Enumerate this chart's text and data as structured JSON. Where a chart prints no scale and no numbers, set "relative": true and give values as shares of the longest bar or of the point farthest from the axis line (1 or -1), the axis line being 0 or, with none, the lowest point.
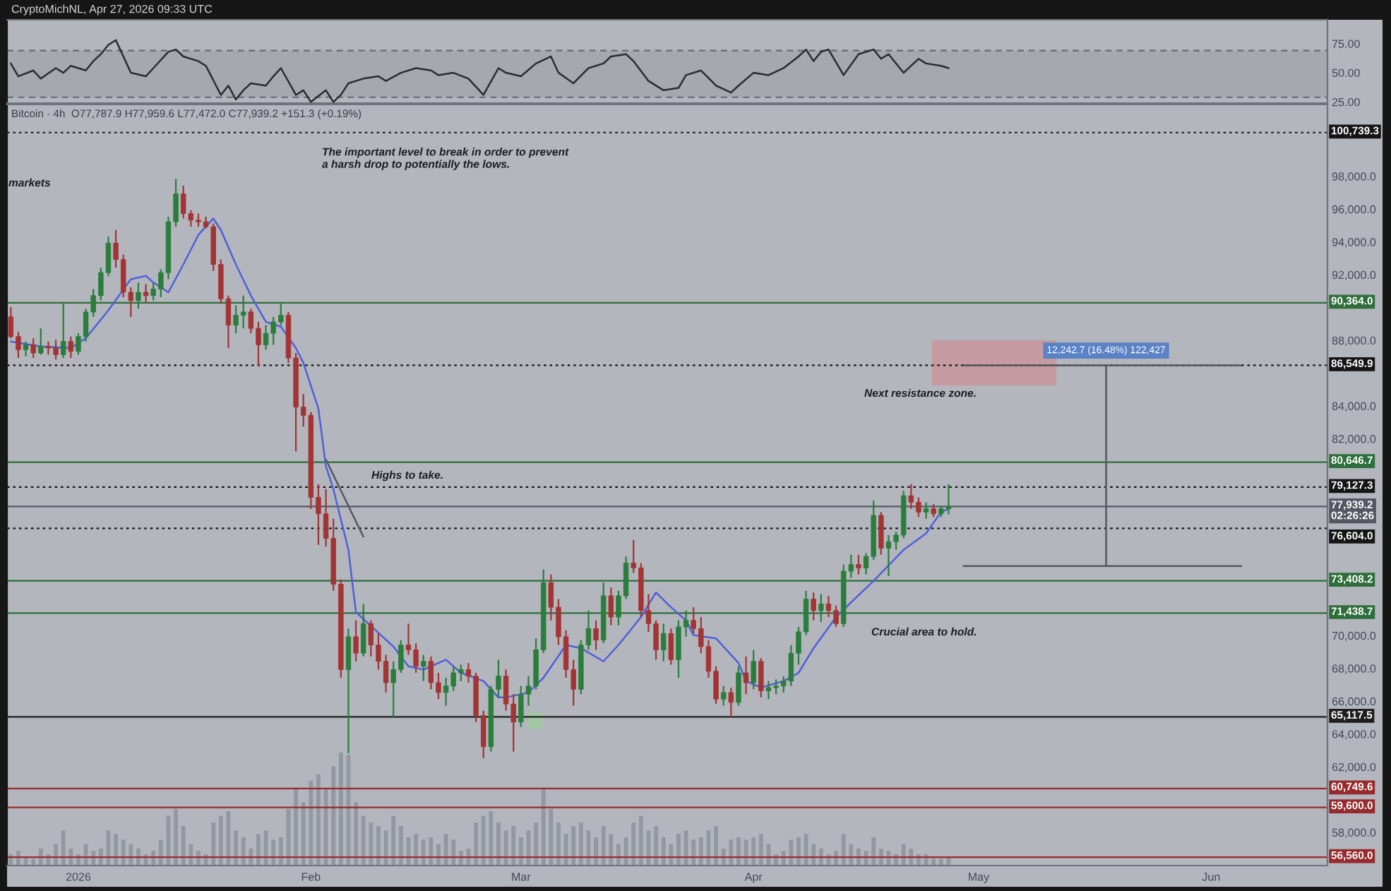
{
  "chart_data": [
    {
      "type": "line",
      "annotations": [
        "CryptoMichNL, Apr 27, 2026 09:33 UTC"
      ],
      "xlim": [
        "2025-12-22T12:00",
        "2026-06-16T12:00"
      ],
      "ylim": [
        25,
        96.5
      ],
      "yticks": [
        {
          "value": 25,
          "label": "25.00"
        },
        {
          "value": 50,
          "label": "50.00"
        },
        {
          "value": 75,
          "label": "75.00"
        }
      ],
      "tick_labels": "y",
      "bands": [
        {
          "axis": "y",
          "from": 30,
          "to": 70,
          "color": "#a5a8af"
        }
      ],
      "ref_lines": [
        {
          "axis": "y",
          "value": 70,
          "color": "#666a72",
          "line_style": "dashed"
        },
        {
          "axis": "y",
          "value": 30,
          "color": "#666a72",
          "line_style": "dashed"
        }
      ],
      "series": [
        {
          "color": "#2b2c30",
          "x": [
            "2025-12-23",
            "2025-12-24",
            "2025-12-26",
            "2025-12-27",
            "2025-12-29",
            "2025-12-30",
            "2025-12-31",
            "2026-01-02",
            "2026-01-03",
            "2026-01-04",
            "2026-01-05",
            "2026-01-06",
            "2026-01-08",
            "2026-01-10",
            "2026-01-11",
            "2026-01-13",
            "2026-01-14",
            "2026-01-15",
            "2026-01-17",
            "2026-01-18",
            "2026-01-20",
            "2026-01-21",
            "2026-01-22",
            "2026-01-23",
            "2026-01-24",
            "2026-01-26",
            "2026-01-27",
            "2026-01-28",
            "2026-01-30",
            "2026-01-31",
            "2026-02-01",
            "2026-02-03",
            "2026-02-04",
            "2026-02-05",
            "2026-02-06",
            "2026-02-08",
            "2026-02-10",
            "2026-02-11",
            "2026-02-13",
            "2026-02-15",
            "2026-02-17",
            "2026-02-18",
            "2026-02-20",
            "2026-02-22",
            "2026-02-24",
            "2026-02-26",
            "2026-02-27",
            "2026-03-01",
            "2026-03-03",
            "2026-03-05",
            "2026-03-06",
            "2026-03-08",
            "2026-03-10",
            "2026-03-12",
            "2026-03-13",
            "2026-03-15",
            "2026-03-16",
            "2026-03-18",
            "2026-03-20",
            "2026-03-22",
            "2026-03-23",
            "2026-03-25",
            "2026-03-27",
            "2026-03-29",
            "2026-03-30",
            "2026-04-01",
            "2026-04-03",
            "2026-04-05",
            "2026-04-07",
            "2026-04-08",
            "2026-04-09",
            "2026-04-10",
            "2026-04-11",
            "2026-04-13",
            "2026-04-15",
            "2026-04-17",
            "2026-04-18",
            "2026-04-19",
            "2026-04-21",
            "2026-04-22",
            "2026-04-23",
            "2026-04-24",
            "2026-04-26",
            "2026-04-27"
          ],
          "values": [
            59,
            48,
            53,
            46,
            55,
            51,
            57,
            53,
            61,
            67,
            75,
            79,
            51,
            48,
            55,
            69,
            71,
            65,
            61,
            57,
            32,
            40,
            28,
            36,
            42,
            40,
            48,
            55,
            32,
            36,
            26,
            36,
            26,
            32,
            42,
            46,
            48,
            44,
            51,
            55,
            53,
            49,
            51,
            46,
            32,
            55,
            51,
            48,
            59,
            65,
            51,
            42,
            55,
            59,
            65,
            67,
            61,
            44,
            36,
            38,
            49,
            53,
            40,
            34,
            40,
            51,
            49,
            55,
            65,
            71,
            61,
            69,
            71,
            49,
            67,
            71,
            63,
            67,
            51,
            57,
            63,
            59,
            57,
            55
          ]
        }
      ]
    },
    {
      "type": "candlestick",
      "annotations": [
        "Bitcoin · 4h  O77,787.9 H77,959.6 L77,472.0 C77,939.2 +151.3 (+0.19%)",
        "markets",
        "The important level to break in order to prevent\na harsh drop to potentially the lows.",
        "Highs to take.",
        "Next resistance zone.",
        "Crucial area to hold."
      ],
      "xlim": [
        "2025-12-22T12:00",
        "2026-06-16T12:00"
      ],
      "xticks": [
        {
          "value": "2026-01-01",
          "label": "2026"
        },
        {
          "value": "2026-02-01",
          "label": "Feb"
        },
        {
          "value": "2026-03-01",
          "label": "Mar"
        },
        {
          "value": "2026-04-01",
          "label": "Apr"
        },
        {
          "value": "2026-05-01",
          "label": "May"
        },
        {
          "value": "2026-06-01",
          "label": "Jun"
        }
      ],
      "ylim": [
        56050,
        102450
      ],
      "yticks": [
        {
          "value": 58000,
          "label": "58,000.0"
        },
        {
          "value": 62000,
          "label": "62,000.0"
        },
        {
          "value": 64000,
          "label": "64,000.0"
        },
        {
          "value": 66000,
          "label": "66,000.0"
        },
        {
          "value": 68000,
          "label": "68,000.0"
        },
        {
          "value": 70000,
          "label": "70,000.0"
        },
        {
          "value": 82000,
          "label": "82,000.0"
        },
        {
          "value": 84000,
          "label": "84,000.0"
        },
        {
          "value": 88000,
          "label": "88,000.0"
        },
        {
          "value": 92000,
          "label": "92,000.0"
        },
        {
          "value": 94000,
          "label": "94,000.0"
        },
        {
          "value": 96000,
          "label": "96,000.0"
        },
        {
          "value": 98000,
          "label": "98,000.0"
        }
      ],
      "ref_lines": [
        {
          "axis": "y",
          "value": 100739.3,
          "label": "100,739.3",
          "color": "#151515",
          "line_style": "dotted"
        },
        {
          "axis": "y",
          "value": 90364.0,
          "label": "90,364.0",
          "color": "#2d6e3a",
          "line_style": "solid"
        },
        {
          "axis": "y",
          "value": 86549.9,
          "label": "86,549.9",
          "color": "#151515",
          "line_style": "dotted"
        },
        {
          "axis": "y",
          "value": 80646.7,
          "label": "80,646.7",
          "color": "#2d6e3a",
          "line_style": "solid"
        },
        {
          "axis": "y",
          "value": 79127.3,
          "label": "79,127.3",
          "color": "#151515",
          "line_style": "dotted"
        },
        {
          "axis": "y",
          "value": 77939.2,
          "label": "77,939.2\n02:26:26",
          "color": "#555862",
          "line_style": "solid"
        },
        {
          "axis": "y",
          "value": 76604.0,
          "label": "76,604.0",
          "color": "#151515",
          "line_style": "dotted"
        },
        {
          "axis": "y",
          "value": 73408.2,
          "label": "73,408.2",
          "color": "#2d6e3a",
          "line_style": "solid"
        },
        {
          "axis": "y",
          "value": 71438.7,
          "label": "71,438.7",
          "color": "#2d6e3a",
          "line_style": "solid"
        },
        {
          "axis": "y",
          "value": 65117.5,
          "label": "65,117.5",
          "color": "#1e1e1e",
          "line_style": "solid"
        },
        {
          "axis": "y",
          "value": 60749.6,
          "label": "60,749.6",
          "color": "#962a2d",
          "line_style": "solid"
        },
        {
          "axis": "y",
          "value": 59600.0,
          "label": "59,600.0",
          "color": "#962a2d",
          "line_style": "solid"
        },
        {
          "axis": "y",
          "value": 56560.0,
          "label": "56,560.0",
          "color": "#962a2d",
          "line_style": "solid"
        }
      ],
      "series": [
        {
          "type": "line",
          "color": "#5060d8",
          "x": [
            "2025-12-23",
            "2025-12-27",
            "2025-12-31",
            "2026-01-02",
            "2026-01-05",
            "2026-01-08",
            "2026-01-10",
            "2026-01-11",
            "2026-01-13",
            "2026-01-15",
            "2026-01-17",
            "2026-01-19",
            "2026-01-20",
            "2026-01-22",
            "2026-01-24",
            "2026-01-26",
            "2026-01-28",
            "2026-01-30",
            "2026-01-31",
            "2026-02-02",
            "2026-02-03",
            "2026-02-04",
            "2026-02-06",
            "2026-02-07",
            "2026-02-12",
            "2026-02-14",
            "2026-02-16",
            "2026-02-19",
            "2026-02-21",
            "2026-02-24",
            "2026-02-26",
            "2026-02-27",
            "2026-03-02",
            "2026-03-04",
            "2026-03-07",
            "2026-03-09",
            "2026-03-12",
            "2026-03-14",
            "2026-03-17",
            "2026-03-19",
            "2026-03-21",
            "2026-03-23",
            "2026-03-24",
            "2026-03-27",
            "2026-03-30",
            "2026-03-31",
            "2026-04-02",
            "2026-04-05",
            "2026-04-07",
            "2026-04-09",
            "2026-04-12",
            "2026-04-14",
            "2026-04-17",
            "2026-04-21",
            "2026-04-24",
            "2026-04-26",
            "2026-04-27"
          ],
          "values": [
            88000,
            87700,
            87600,
            88200,
            89900,
            91800,
            92000,
            91600,
            91000,
            92700,
            94500,
            95500,
            94800,
            92700,
            90800,
            89200,
            88900,
            87600,
            86700,
            83900,
            80400,
            79000,
            75300,
            71500,
            69400,
            68200,
            68000,
            68600,
            67800,
            67300,
            66300,
            66300,
            66600,
            67500,
            69500,
            69300,
            68500,
            69500,
            71200,
            72700,
            71800,
            71000,
            70100,
            69900,
            68400,
            67300,
            66900,
            67300,
            67800,
            69300,
            71200,
            72100,
            73400,
            75300,
            76300,
            77600,
            77800
          ]
        },
        {
          "type": "line",
          "color": "#55585f",
          "x": [
            "2026-02-03",
            "2026-02-08"
          ],
          "values": [
            80800,
            76100
          ]
        },
        {
          "type": "line",
          "color": "#55585f",
          "x": [
            "2026-04-29",
            "2026-06-05"
          ],
          "values": [
            74307.2,
            74307.2
          ]
        },
        {
          "type": "line",
          "color": "#55585f",
          "x": [
            "2026-04-29",
            "2026-06-05"
          ],
          "values": [
            86549.9,
            86549.9
          ]
        },
        {
          "type": "line",
          "color": "#55585f",
          "name": "12,242.7 (16.48%) 122,427",
          "x": [
            "2026-05-18",
            "2026-05-18"
          ],
          "values": [
            74307.2,
            86549.9
          ]
        },
        {
          "type": "candlestick",
          "x": [
            "2025-12-23",
            "2025-12-24",
            "2025-12-25",
            "2025-12-26",
            "2025-12-27",
            "2025-12-28",
            "2025-12-29",
            "2025-12-30",
            "2025-12-31",
            "2026-01-01",
            "2026-01-02",
            "2026-01-03",
            "2026-01-04",
            "2026-01-05",
            "2026-01-06",
            "2026-01-07",
            "2026-01-08",
            "2026-01-09",
            "2026-01-10",
            "2026-01-11",
            "2026-01-12",
            "2026-01-13",
            "2026-01-14",
            "2026-01-15",
            "2026-01-16",
            "2026-01-17",
            "2026-01-18",
            "2026-01-19",
            "2026-01-20",
            "2026-01-21",
            "2026-01-22",
            "2026-01-23",
            "2026-01-24",
            "2026-01-25",
            "2026-01-26",
            "2026-01-27",
            "2026-01-28",
            "2026-01-29",
            "2026-01-30",
            "2026-01-31",
            "2026-02-01",
            "2026-02-02",
            "2026-02-03",
            "2026-02-04",
            "2026-02-05",
            "2026-02-06",
            "2026-02-07",
            "2026-02-08",
            "2026-02-09",
            "2026-02-10",
            "2026-02-11",
            "2026-02-12",
            "2026-02-13",
            "2026-02-14",
            "2026-02-15",
            "2026-02-16",
            "2026-02-17",
            "2026-02-18",
            "2026-02-19",
            "2026-02-20",
            "2026-02-21",
            "2026-02-22",
            "2026-02-23",
            "2026-02-24",
            "2026-02-25",
            "2026-02-26",
            "2026-02-27",
            "2026-02-28",
            "2026-03-01",
            "2026-03-02",
            "2026-03-03",
            "2026-03-04",
            "2026-03-05",
            "2026-03-06",
            "2026-03-07",
            "2026-03-08",
            "2026-03-09",
            "2026-03-10",
            "2026-03-11",
            "2026-03-12",
            "2026-03-13",
            "2026-03-14",
            "2026-03-15",
            "2026-03-16",
            "2026-03-17",
            "2026-03-18",
            "2026-03-19",
            "2026-03-20",
            "2026-03-21",
            "2026-03-22",
            "2026-03-23",
            "2026-03-24",
            "2026-03-25",
            "2026-03-26",
            "2026-03-27",
            "2026-03-28",
            "2026-03-29",
            "2026-03-30",
            "2026-03-31",
            "2026-04-01",
            "2026-04-02",
            "2026-04-03",
            "2026-04-04",
            "2026-04-05",
            "2026-04-06",
            "2026-04-07",
            "2026-04-08",
            "2026-04-09",
            "2026-04-10",
            "2026-04-11",
            "2026-04-12",
            "2026-04-13",
            "2026-04-14",
            "2026-04-15",
            "2026-04-16",
            "2026-04-17",
            "2026-04-18",
            "2026-04-19",
            "2026-04-20",
            "2026-04-21",
            "2026-04-22",
            "2026-04-23",
            "2026-04-24",
            "2026-04-25",
            "2026-04-26",
            "2026-04-27"
          ],
          "ohlc": [
            [
              89500,
              90100,
              88200,
              88300
            ],
            [
              88300,
              88600,
              87000,
              87500
            ],
            [
              87500,
              88000,
              87100,
              87800
            ],
            [
              87800,
              88200,
              87000,
              87300
            ],
            [
              87300,
              88800,
              87200,
              87700
            ],
            [
              87700,
              88000,
              87200,
              87600
            ],
            [
              87600,
              88100,
              86900,
              87200
            ],
            [
              87200,
              90300,
              87000,
              88000
            ],
            [
              88000,
              88300,
              87000,
              87400
            ],
            [
              87400,
              88500,
              87200,
              88300
            ],
            [
              88300,
              90000,
              88000,
              89800
            ],
            [
              89800,
              91200,
              89500,
              90800
            ],
            [
              90800,
              92500,
              90500,
              92200
            ],
            [
              92200,
              94400,
              92000,
              94000
            ],
            [
              94000,
              94800,
              92500,
              93000
            ],
            [
              93000,
              93300,
              90700,
              91000
            ],
            [
              91000,
              91300,
              89500,
              90500
            ],
            [
              90500,
              91600,
              90000,
              91000
            ],
            [
              91000,
              91500,
              90400,
              90800
            ],
            [
              90800,
              91600,
              90500,
              91200
            ],
            [
              91200,
              92400,
              90700,
              92200
            ],
            [
              92200,
              95600,
              91800,
              95300
            ],
            [
              95300,
              97900,
              95000,
              97000
            ],
            [
              97000,
              97500,
              95500,
              95800
            ],
            [
              95800,
              96000,
              95000,
              95400
            ],
            [
              95400,
              95800,
              95000,
              95300
            ],
            [
              95300,
              95600,
              94900,
              95000
            ],
            [
              95000,
              95200,
              92300,
              92700
            ],
            [
              92700,
              93000,
              90300,
              90600
            ],
            [
              90600,
              90800,
              87600,
              89000
            ],
            [
              89000,
              90200,
              88500,
              89600
            ],
            [
              89600,
              90800,
              88800,
              89800
            ],
            [
              89800,
              90000,
              88500,
              88800
            ],
            [
              88800,
              89200,
              86500,
              87800
            ],
            [
              87800,
              89000,
              87500,
              88500
            ],
            [
              88500,
              89500,
              87800,
              89200
            ],
            [
              89200,
              90300,
              89000,
              89600
            ],
            [
              89600,
              89800,
              86700,
              87000
            ],
            [
              87000,
              87300,
              81300,
              84000
            ],
            [
              84000,
              84800,
              82800,
              83500
            ],
            [
              83500,
              83700,
              77800,
              78500
            ],
            [
              78500,
              79300,
              75600,
              77500
            ],
            [
              77500,
              79000,
              75500,
              76000
            ],
            [
              76000,
              77200,
              72800,
              73200
            ],
            [
              73200,
              73500,
              67500,
              68000
            ],
            [
              68000,
              70500,
              62900,
              70000
            ],
            [
              70000,
              71000,
              68500,
              69000
            ],
            [
              69000,
              72000,
              68800,
              70800
            ],
            [
              70800,
              71000,
              68800,
              69500
            ],
            [
              69500,
              70200,
              68000,
              68500
            ],
            [
              68500,
              68900,
              66600,
              67200
            ],
            [
              67200,
              68500,
              65100,
              68000
            ],
            [
              68000,
              69800,
              67800,
              69500
            ],
            [
              69500,
              70800,
              68900,
              69200
            ],
            [
              69200,
              69600,
              67800,
              68200
            ],
            [
              68200,
              68900,
              67300,
              68500
            ],
            [
              68500,
              68800,
              66800,
              67200
            ],
            [
              67200,
              67800,
              66200,
              66600
            ],
            [
              66600,
              67500,
              65800,
              67000
            ],
            [
              67000,
              68200,
              66700,
              67800
            ],
            [
              67800,
              68300,
              67300,
              68000
            ],
            [
              68000,
              68400,
              67200,
              67600
            ],
            [
              67600,
              67800,
              64800,
              65200
            ],
            [
              65200,
              65500,
              62600,
              63300
            ],
            [
              63300,
              67000,
              63000,
              66800
            ],
            [
              66800,
              68600,
              66300,
              67600
            ],
            [
              67600,
              68000,
              65500,
              65900
            ],
            [
              65900,
              66500,
              63000,
              64800
            ],
            [
              64800,
              67000,
              64500,
              66500
            ],
            [
              66500,
              67600,
              65800,
              67000
            ],
            [
              67000,
              69900,
              66800,
              69200
            ],
            [
              69200,
              74100,
              69000,
              73300
            ],
            [
              73300,
              73800,
              71000,
              71800
            ],
            [
              71800,
              72300,
              69500,
              70000
            ],
            [
              70000,
              70400,
              67500,
              68000
            ],
            [
              68000,
              68600,
              65800,
              66800
            ],
            [
              66800,
              69800,
              66500,
              69500
            ],
            [
              69500,
              71600,
              69200,
              70500
            ],
            [
              70500,
              71000,
              69200,
              69800
            ],
            [
              69800,
              73300,
              69600,
              72500
            ],
            [
              72500,
              73000,
              70700,
              71200
            ],
            [
              71200,
              72800,
              70700,
              72500
            ],
            [
              72500,
              74900,
              72300,
              74500
            ],
            [
              74500,
              75900,
              73900,
              74200
            ],
            [
              74200,
              74500,
              71200,
              71600
            ],
            [
              71600,
              72600,
              70300,
              70800
            ],
            [
              70800,
              71000,
              68600,
              69200
            ],
            [
              69200,
              70800,
              68500,
              70200
            ],
            [
              70200,
              70500,
              68300,
              68600
            ],
            [
              68600,
              71000,
              67500,
              70600
            ],
            [
              70600,
              71600,
              70000,
              71000
            ],
            [
              71000,
              71800,
              70200,
              70500
            ],
            [
              70500,
              71200,
              69000,
              69400
            ],
            [
              69400,
              69800,
              67500,
              67900
            ],
            [
              67900,
              68200,
              65900,
              66200
            ],
            [
              66200,
              67000,
              65800,
              66600
            ],
            [
              66600,
              66900,
              65100,
              66000
            ],
            [
              66000,
              68200,
              65800,
              67800
            ],
            [
              67800,
              68800,
              66500,
              67200
            ],
            [
              67200,
              69200,
              66800,
              68500
            ],
            [
              68500,
              68700,
              66300,
              66700
            ],
            [
              66700,
              67300,
              66200,
              66900
            ],
            [
              66900,
              67400,
              66500,
              67000
            ],
            [
              67000,
              67600,
              66600,
              67300
            ],
            [
              67300,
              69500,
              67000,
              69000
            ],
            [
              69000,
              70600,
              68300,
              70300
            ],
            [
              70300,
              72800,
              70100,
              72300
            ],
            [
              72300,
              72700,
              71000,
              71600
            ],
            [
              71600,
              72600,
              70900,
              72000
            ],
            [
              72000,
              72500,
              71200,
              71600
            ],
            [
              71600,
              71900,
              70600,
              70800
            ],
            [
              70800,
              74400,
              70600,
              74000
            ],
            [
              74000,
              75000,
              73600,
              74400
            ],
            [
              74400,
              75000,
              73800,
              74200
            ],
            [
              74200,
              75100,
              73800,
              74900
            ],
            [
              74900,
              78300,
              74700,
              77400
            ],
            [
              77400,
              77600,
              75000,
              75400
            ],
            [
              75400,
              76200,
              73700,
              75800
            ],
            [
              75800,
              76400,
              75300,
              76200
            ],
            [
              76200,
              78900,
              76000,
              78600
            ],
            [
              78600,
              79300,
              77800,
              78200
            ],
            [
              78200,
              78500,
              77300,
              77600
            ],
            [
              77600,
              78200,
              77200,
              77800
            ],
            [
              77800,
              78100,
              77300,
              77500
            ],
            [
              77500,
              78000,
              77300,
              77800
            ],
            [
              77800,
              79300,
              77472,
              77939.2
            ]
          ],
          "colors": [
            "#a33434",
            "#a33434",
            "#2a7d3b",
            "#a33434",
            "#2a7d3b",
            "#a33434",
            "#a33434",
            "#2a7d3b",
            "#a33434",
            "#2a7d3b",
            "#2a7d3b",
            "#2a7d3b",
            "#2a7d3b",
            "#2a7d3b",
            "#a33434",
            "#a33434",
            "#a33434",
            "#2a7d3b",
            "#a33434",
            "#2a7d3b",
            "#2a7d3b",
            "#2a7d3b",
            "#2a7d3b",
            "#a33434",
            "#a33434",
            "#a33434",
            "#a33434",
            "#a33434",
            "#a33434",
            "#a33434",
            "#2a7d3b",
            "#2a7d3b",
            "#a33434",
            "#a33434",
            "#2a7d3b",
            "#2a7d3b",
            "#2a7d3b",
            "#a33434",
            "#a33434",
            "#a33434",
            "#a33434",
            "#a33434",
            "#a33434",
            "#a33434",
            "#a33434",
            "#2a7d3b",
            "#a33434",
            "#2a7d3b",
            "#a33434",
            "#a33434",
            "#a33434",
            "#2a7d3b",
            "#2a7d3b",
            "#a33434",
            "#a33434",
            "#2a7d3b",
            "#a33434",
            "#a33434",
            "#2a7d3b",
            "#2a7d3b",
            "#2a7d3b",
            "#a33434",
            "#a33434",
            "#a33434",
            "#2a7d3b",
            "#2a7d3b",
            "#a33434",
            "#a33434",
            "#2a7d3b",
            "#2a7d3b",
            "#2a7d3b",
            "#2a7d3b",
            "#a33434",
            "#a33434",
            "#a33434",
            "#a33434",
            "#2a7d3b",
            "#2a7d3b",
            "#a33434",
            "#2a7d3b",
            "#a33434",
            "#2a7d3b",
            "#2a7d3b",
            "#a33434",
            "#a33434",
            "#a33434",
            "#a33434",
            "#2a7d3b",
            "#a33434",
            "#2a7d3b",
            "#2a7d3b",
            "#a33434",
            "#a33434",
            "#a33434",
            "#a33434",
            "#2a7d3b",
            "#a33434",
            "#2a7d3b",
            "#a33434",
            "#2a7d3b",
            "#a33434",
            "#2a7d3b",
            "#2a7d3b",
            "#2a7d3b",
            "#2a7d3b",
            "#2a7d3b",
            "#2a7d3b",
            "#a33434",
            "#2a7d3b",
            "#a33434",
            "#a33434",
            "#2a7d3b",
            "#2a7d3b",
            "#a33434",
            "#2a7d3b",
            "#2a7d3b",
            "#a33434",
            "#2a7d3b",
            "#2a7d3b",
            "#2a7d3b",
            "#a33434",
            "#a33434",
            "#2a7d3b",
            "#a33434",
            "#2a7d3b",
            "#2a7d3b"
          ]
        }
      ]
    },
    {
      "type": "bar",
      "relative": true,
      "tick_labels": false,
      "xlim": [
        "2025-12-22T12:00",
        "2026-06-16T12:00"
      ],
      "color": "#8f939b",
      "x": [
        "2025-12-23",
        "2025-12-24",
        "2025-12-25",
        "2025-12-26",
        "2025-12-27",
        "2025-12-28",
        "2025-12-29",
        "2025-12-30",
        "2025-12-31",
        "2026-01-01",
        "2026-01-02",
        "2026-01-03",
        "2026-01-04",
        "2026-01-05",
        "2026-01-06",
        "2026-01-07",
        "2026-01-08",
        "2026-01-09",
        "2026-01-10",
        "2026-01-11",
        "2026-01-12",
        "2026-01-13",
        "2026-01-14",
        "2026-01-15",
        "2026-01-16",
        "2026-01-17",
        "2026-01-18",
        "2026-01-19",
        "2026-01-20",
        "2026-01-21",
        "2026-01-22",
        "2026-01-23",
        "2026-01-24",
        "2026-01-25",
        "2026-01-26",
        "2026-01-27",
        "2026-01-28",
        "2026-01-29",
        "2026-01-30",
        "2026-01-31",
        "2026-02-01",
        "2026-02-02",
        "2026-02-03",
        "2026-02-04",
        "2026-02-05",
        "2026-02-06",
        "2026-02-07",
        "2026-02-08",
        "2026-02-09",
        "2026-02-10",
        "2026-02-11",
        "2026-02-12",
        "2026-02-13",
        "2026-02-14",
        "2026-02-15",
        "2026-02-16",
        "2026-02-17",
        "2026-02-18",
        "2026-02-19",
        "2026-02-20",
        "2026-02-21",
        "2026-02-22",
        "2026-02-23",
        "2026-02-24",
        "2026-02-25",
        "2026-02-26",
        "2026-02-27",
        "2026-02-28",
        "2026-03-01",
        "2026-03-02",
        "2026-03-03",
        "2026-03-04",
        "2026-03-05",
        "2026-03-06",
        "2026-03-07",
        "2026-03-08",
        "2026-03-09",
        "2026-03-10",
        "2026-03-11",
        "2026-03-12",
        "2026-03-13",
        "2026-03-14",
        "2026-03-15",
        "2026-03-16",
        "2026-03-17",
        "2026-03-18",
        "2026-03-19",
        "2026-03-20",
        "2026-03-21",
        "2026-03-22",
        "2026-03-23",
        "2026-03-24",
        "2026-03-25",
        "2026-03-26",
        "2026-03-27",
        "2026-03-28",
        "2026-03-29",
        "2026-03-30",
        "2026-03-31",
        "2026-04-01",
        "2026-04-02",
        "2026-04-03",
        "2026-04-04",
        "2026-04-05",
        "2026-04-06",
        "2026-04-07",
        "2026-04-08",
        "2026-04-09",
        "2026-04-10",
        "2026-04-11",
        "2026-04-12",
        "2026-04-13",
        "2026-04-14",
        "2026-04-15",
        "2026-04-16",
        "2026-04-17",
        "2026-04-18",
        "2026-04-19",
        "2026-04-20",
        "2026-04-21",
        "2026-04-22",
        "2026-04-23",
        "2026-04-24",
        "2026-04-25",
        "2026-04-26",
        "2026-04-27"
      ],
      "values": [
        0.1,
        0.13,
        0.08,
        0.06,
        0.15,
        0.1,
        0.19,
        0.31,
        0.15,
        0.1,
        0.19,
        0.13,
        0.15,
        0.31,
        0.28,
        0.23,
        0.19,
        0.15,
        0.1,
        0.13,
        0.23,
        0.44,
        0.5,
        0.35,
        0.19,
        0.13,
        0.1,
        0.38,
        0.44,
        0.48,
        0.31,
        0.25,
        0.15,
        0.28,
        0.31,
        0.23,
        0.25,
        0.5,
        0.69,
        0.56,
        0.75,
        0.81,
        0.69,
        0.88,
        1,
        0.98,
        0.56,
        0.44,
        0.38,
        0.35,
        0.31,
        0.44,
        0.35,
        0.25,
        0.28,
        0.23,
        0.25,
        0.19,
        0.28,
        0.23,
        0.13,
        0.15,
        0.38,
        0.44,
        0.48,
        0.38,
        0.31,
        0.35,
        0.25,
        0.31,
        0.38,
        0.69,
        0.5,
        0.38,
        0.28,
        0.35,
        0.38,
        0.31,
        0.25,
        0.35,
        0.28,
        0.19,
        0.25,
        0.38,
        0.44,
        0.31,
        0.35,
        0.25,
        0.19,
        0.28,
        0.31,
        0.23,
        0.25,
        0.31,
        0.35,
        0.15,
        0.23,
        0.25,
        0.23,
        0.25,
        0.28,
        0.19,
        0.1,
        0.13,
        0.23,
        0.25,
        0.28,
        0.19,
        0.15,
        0.1,
        0.13,
        0.28,
        0.19,
        0.15,
        0.13,
        0.25,
        0.15,
        0.13,
        0.1,
        0.19,
        0.15,
        0.1,
        0.1,
        0.06,
        0.06,
        0.08
      ]
    }
  ]
}
